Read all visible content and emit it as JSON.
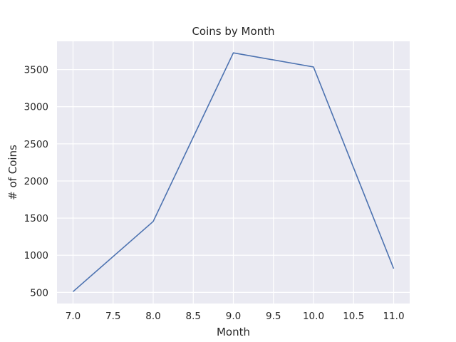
{
  "colors": {
    "plot_background": "#eaeaf2",
    "grid": "#ffffff",
    "line": "#4c72b0",
    "text": "#262626"
  },
  "chart_data": {
    "type": "line",
    "title": "Coins by Month",
    "xlabel": "Month",
    "ylabel": "# of Coins",
    "x": [
      7.0,
      8.0,
      9.0,
      10.0,
      11.0
    ],
    "series": [
      {
        "values": [
          510,
          1455,
          3725,
          3535,
          820
        ]
      }
    ],
    "xlim": [
      6.8,
      11.2
    ],
    "ylim": [
      350,
      3880
    ],
    "xticks": [
      7.0,
      7.5,
      8.0,
      8.5,
      9.0,
      9.5,
      10.0,
      10.5,
      11.0
    ],
    "xtick_labels": [
      "7.0",
      "7.5",
      "8.0",
      "8.5",
      "9.0",
      "9.5",
      "10.0",
      "10.5",
      "11.0"
    ],
    "yticks": [
      500,
      1000,
      1500,
      2000,
      2500,
      3000,
      3500
    ],
    "ytick_labels": [
      "500",
      "1000",
      "1500",
      "2000",
      "2500",
      "3000",
      "3500"
    ],
    "grid": true,
    "legend": "none"
  }
}
